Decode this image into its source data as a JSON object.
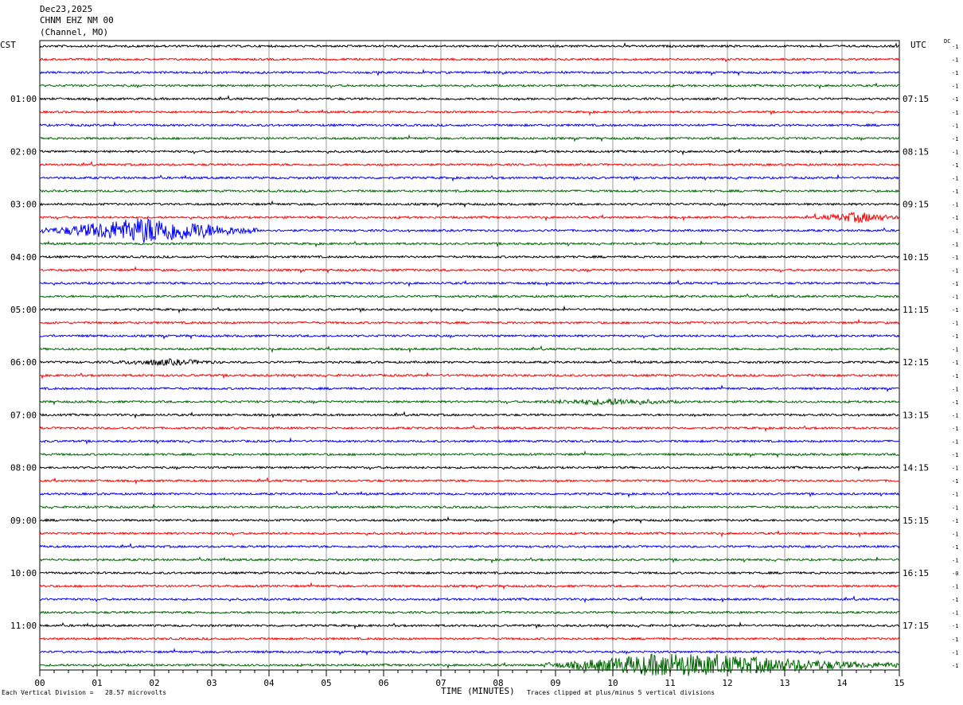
{
  "header": {
    "date": "Dec23,2025",
    "station": "CHNM EHZ NM 00",
    "subtitle": "(Channel, MO)"
  },
  "left_tz": "CST",
  "right_tz": "UTC",
  "dc_label": "DC",
  "colors": {
    "trace_cycle": [
      "#000000",
      "#ff0000",
      "#0000ff",
      "#006600"
    ],
    "grid": "#808080"
  },
  "chart_data": {
    "type": "line",
    "title": "CHNM EHZ NM 00",
    "xlabel": "TIME (MINUTES)",
    "xlim": [
      0,
      15
    ],
    "x_ticks": [
      "00",
      "01",
      "02",
      "03",
      "04",
      "05",
      "06",
      "07",
      "08",
      "09",
      "10",
      "11",
      "12",
      "13",
      "14",
      "15"
    ],
    "rows": 48,
    "row_minutes": 15,
    "left_hour_labels": [
      "01:00",
      "02:00",
      "03:00",
      "04:00",
      "05:00",
      "06:00",
      "07:00",
      "08:00",
      "09:00",
      "10:00",
      "11:00"
    ],
    "right_hour_labels": [
      "07:15",
      "08:15",
      "09:15",
      "10:15",
      "11:15",
      "12:15",
      "13:15",
      "14:15",
      "15:15",
      "16:15",
      "17:15"
    ],
    "row_dc_offsets": [
      "-1",
      "-1",
      "-1",
      "-1",
      "-1",
      "-1",
      "-1",
      "-1",
      "-1",
      "-1",
      "-1",
      "-1",
      "-1",
      "-1",
      "-1",
      "-1",
      "-1",
      "-1",
      "-1",
      "-1",
      "-1",
      "-1",
      "-1",
      "-1",
      "-1",
      "-1",
      "-1",
      "-1",
      "-1",
      "-1",
      "-1",
      "-1",
      "-1",
      "-1",
      "-1",
      "-1",
      "-1",
      "-1",
      "-1",
      "-1",
      "-0",
      "-1",
      "-1",
      "-1",
      "-1",
      "-1",
      "-1",
      "-1"
    ],
    "events": [
      {
        "row": 14,
        "start_min": 0,
        "end_min": 3.8,
        "peak_min": 1.9,
        "amplitude": 1.0
      },
      {
        "row": 13,
        "start_min": 13.5,
        "end_min": 15,
        "peak_min": 14.3,
        "amplitude": 0.35
      },
      {
        "row": 47,
        "start_min": 8.8,
        "end_min": 15,
        "peak_min": 10.9,
        "amplitude": 0.9
      },
      {
        "row": 24,
        "start_min": 1.2,
        "end_min": 3.2,
        "peak_min": 2.2,
        "amplitude": 0.2
      },
      {
        "row": 27,
        "start_min": 8.6,
        "end_min": 11.2,
        "peak_min": 10.0,
        "amplitude": 0.2
      }
    ]
  },
  "footer": {
    "left": "Each Vertical Division =   28.57 microvolts",
    "center": "TIME (MINUTES)",
    "right": "Traces clipped at plus/minus 5 vertical divisions"
  }
}
